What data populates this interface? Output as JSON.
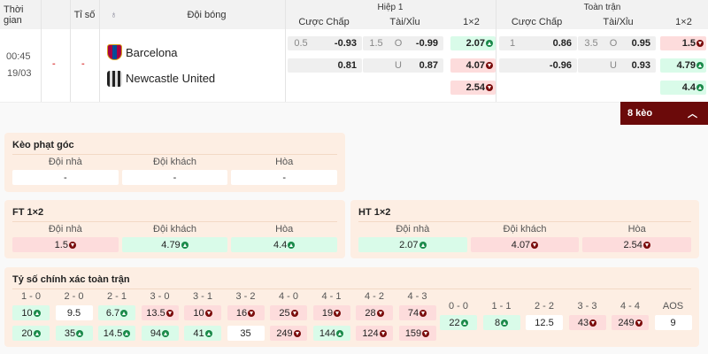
{
  "header": {
    "time": "Thời gian",
    "score": "Tỉ số",
    "teams": "Đội bóng",
    "half1": "Hiệp 1",
    "full": "Toàn trận",
    "handicap": "Cược Chấp",
    "ou": "Tài/Xỉu",
    "x12": "1×2"
  },
  "match": {
    "time": "00:45",
    "date": "19/03",
    "score_home": "-",
    "score_away": "-",
    "home": "Barcelona",
    "away": "Newcastle United"
  },
  "h1": {
    "hcp": [
      {
        "line": "0.5",
        "odds": "-0.93"
      },
      {
        "line": "",
        "odds": "0.81"
      }
    ],
    "ou": [
      {
        "line": "1.5",
        "side": "O",
        "odds": "-0.99"
      },
      {
        "line": "",
        "side": "U",
        "odds": "0.87"
      }
    ],
    "x12": [
      {
        "v": "2.07",
        "dir": "up"
      },
      {
        "v": "4.07",
        "dir": "down"
      },
      {
        "v": "2.54",
        "dir": "down"
      }
    ]
  },
  "ft": {
    "hcp": [
      {
        "line": "1",
        "odds": "0.86"
      },
      {
        "line": "",
        "odds": "-0.96"
      }
    ],
    "ou": [
      {
        "line": "3.5",
        "side": "O",
        "odds": "0.95"
      },
      {
        "line": "",
        "side": "U",
        "odds": "0.93"
      }
    ],
    "x12": [
      {
        "v": "1.5",
        "dir": "down"
      },
      {
        "v": "4.79",
        "dir": "up"
      },
      {
        "v": "4.4",
        "dir": "up"
      }
    ]
  },
  "more_button": "8 kèo",
  "corner": {
    "title": "Kèo phạt góc",
    "labels": [
      "Đội nhà",
      "Đội khách",
      "Hòa"
    ],
    "values": [
      {
        "v": "-",
        "dir": null
      },
      {
        "v": "-",
        "dir": null
      },
      {
        "v": "-",
        "dir": null
      }
    ]
  },
  "ft12": {
    "title": "FT 1×2",
    "labels": [
      "Đội nhà",
      "Đội khách",
      "Hòa"
    ],
    "values": [
      {
        "v": "1.5",
        "dir": "down"
      },
      {
        "v": "4.79",
        "dir": "up"
      },
      {
        "v": "4.4",
        "dir": "up"
      }
    ]
  },
  "ht12": {
    "title": "HT 1×2",
    "labels": [
      "Đội nhà",
      "Đội khách",
      "Hòa"
    ],
    "values": [
      {
        "v": "2.07",
        "dir": "up"
      },
      {
        "v": "4.07",
        "dir": "down"
      },
      {
        "v": "2.54",
        "dir": "down"
      }
    ]
  },
  "correct_score": {
    "title": "Tỷ số chính xác toàn trận",
    "home": [
      {
        "s": "1 - 0",
        "a": {
          "v": "10",
          "dir": "up"
        },
        "b": {
          "v": "20",
          "dir": "up"
        }
      },
      {
        "s": "2 - 0",
        "a": {
          "v": "9.5",
          "dir": null
        },
        "b": {
          "v": "35",
          "dir": "up"
        }
      },
      {
        "s": "2 - 1",
        "a": {
          "v": "6.7",
          "dir": "up"
        },
        "b": {
          "v": "14.5",
          "dir": "up"
        }
      },
      {
        "s": "3 - 0",
        "a": {
          "v": "13.5",
          "dir": "down"
        },
        "b": {
          "v": "94",
          "dir": "up"
        }
      },
      {
        "s": "3 - 1",
        "a": {
          "v": "10",
          "dir": "down"
        },
        "b": {
          "v": "41",
          "dir": "up"
        }
      },
      {
        "s": "3 - 2",
        "a": {
          "v": "16",
          "dir": "down"
        },
        "b": {
          "v": "35",
          "dir": null
        }
      },
      {
        "s": "4 - 0",
        "a": {
          "v": "25",
          "dir": "down"
        },
        "b": {
          "v": "249",
          "dir": "down"
        }
      },
      {
        "s": "4 - 1",
        "a": {
          "v": "19",
          "dir": "down"
        },
        "b": {
          "v": "144",
          "dir": "up"
        }
      },
      {
        "s": "4 - 2",
        "a": {
          "v": "28",
          "dir": "down"
        },
        "b": {
          "v": "124",
          "dir": "down"
        }
      },
      {
        "s": "4 - 3",
        "a": {
          "v": "74",
          "dir": "down"
        },
        "b": {
          "v": "159",
          "dir": "down"
        }
      }
    ],
    "draw": [
      {
        "s": "0 - 0",
        "a": {
          "v": "22",
          "dir": "up"
        }
      },
      {
        "s": "1 - 1",
        "a": {
          "v": "8",
          "dir": "up"
        }
      },
      {
        "s": "2 - 2",
        "a": {
          "v": "12.5",
          "dir": null
        }
      },
      {
        "s": "3 - 3",
        "a": {
          "v": "43",
          "dir": "down"
        }
      },
      {
        "s": "4 - 4",
        "a": {
          "v": "249",
          "dir": "down"
        }
      },
      {
        "s": "AOS",
        "a": {
          "v": "9",
          "dir": null
        }
      }
    ]
  },
  "colors": {
    "up": "#1a8a4a",
    "down": "#7a0b0b",
    "up_bg": "#d9fbe9",
    "down_bg": "#fddcdc",
    "button": "#6b0a0a",
    "panel": "#fdeee3"
  }
}
